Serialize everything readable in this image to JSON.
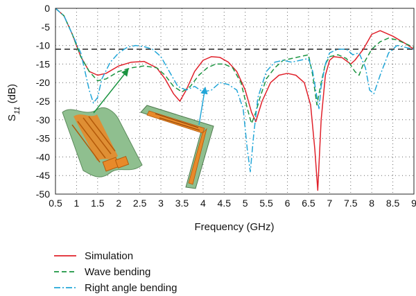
{
  "chart_data": {
    "type": "line",
    "xlabel": "Frequency (GHz)",
    "ylabel_base": "S",
    "ylabel_sub": "11",
    "ylabel_unit": " (dB)",
    "xlim": [
      0.5,
      9
    ],
    "ylim": [
      -50,
      0
    ],
    "x_ticks": [
      "0.5",
      "1",
      "1.5",
      "2",
      "2.5",
      "3",
      "3.5",
      "4",
      "4.5",
      "5",
      "5.5",
      "6",
      "6.5",
      "7",
      "7.5",
      "8",
      "8.5",
      "9"
    ],
    "y_ticks": [
      "0",
      "-5",
      "-10",
      "-15",
      "-20",
      "-25",
      "-30",
      "-35",
      "-40",
      "-45",
      "-50"
    ],
    "grid": "dotted",
    "reference_line": {
      "y": -11,
      "style": "dashed",
      "color": "#222222"
    },
    "legend_position": "bottom-left",
    "series": [
      {
        "name": "Simulation",
        "color": "#e0202a",
        "dash": "solid",
        "x": [
          0.5,
          0.7,
          0.9,
          1.1,
          1.3,
          1.5,
          1.7,
          2.0,
          2.3,
          2.6,
          2.9,
          3.1,
          3.3,
          3.45,
          3.6,
          3.8,
          4.0,
          4.2,
          4.4,
          4.6,
          4.8,
          5.0,
          5.15,
          5.25,
          5.4,
          5.6,
          5.8,
          6.0,
          6.2,
          6.4,
          6.55,
          6.65,
          6.72,
          6.8,
          6.9,
          7.0,
          7.1,
          7.3,
          7.5,
          7.6,
          7.8,
          8.0,
          8.2,
          8.5,
          8.8,
          9.0
        ],
        "y": [
          0,
          -2,
          -7,
          -13,
          -17,
          -18,
          -17.5,
          -15.5,
          -14.5,
          -14.3,
          -16,
          -19,
          -23,
          -25,
          -22,
          -17,
          -14,
          -13,
          -13.2,
          -14.5,
          -17,
          -22,
          -28,
          -30.5,
          -25,
          -20,
          -18,
          -17.5,
          -18,
          -20,
          -26,
          -38,
          -49,
          -30,
          -18,
          -14,
          -13,
          -13.3,
          -15,
          -14,
          -11,
          -7,
          -6,
          -7.5,
          -9.5,
          -11
        ]
      },
      {
        "name": "Wave bending",
        "color": "#1a9440",
        "dash": "7,4",
        "x": [
          0.5,
          0.7,
          0.9,
          1.1,
          1.3,
          1.5,
          1.7,
          2.0,
          2.3,
          2.6,
          2.9,
          3.1,
          3.3,
          3.5,
          3.7,
          3.9,
          4.1,
          4.3,
          4.5,
          4.7,
          4.9,
          5.05,
          5.15,
          5.25,
          5.35,
          5.5,
          5.7,
          5.9,
          6.1,
          6.3,
          6.5,
          6.6,
          6.7,
          6.8,
          6.9,
          7.0,
          7.2,
          7.4,
          7.6,
          7.7,
          7.8,
          8.0,
          8.2,
          8.4,
          8.6,
          8.8,
          9.0
        ],
        "y": [
          0,
          -2,
          -7,
          -13,
          -17,
          -19.5,
          -19,
          -17,
          -16,
          -15.5,
          -16,
          -18,
          -21,
          -22.5,
          -21,
          -18,
          -16,
          -15,
          -15,
          -16,
          -20,
          -27,
          -31,
          -28,
          -24,
          -19,
          -16,
          -14,
          -13.5,
          -13,
          -12.5,
          -18,
          -26,
          -20,
          -15,
          -13,
          -12.5,
          -13.5,
          -17,
          -18,
          -15,
          -11,
          -9,
          -8,
          -8.5,
          -9.5,
          -10.5
        ]
      },
      {
        "name": "Right angle bending",
        "color": "#21a6d8",
        "dash": "9,3,2,3",
        "x": [
          0.5,
          0.7,
          0.9,
          1.1,
          1.2,
          1.3,
          1.4,
          1.5,
          1.6,
          1.8,
          2.0,
          2.2,
          2.4,
          2.6,
          2.8,
          3.0,
          3.2,
          3.4,
          3.6,
          3.8,
          4.0,
          4.2,
          4.4,
          4.6,
          4.8,
          4.95,
          5.05,
          5.12,
          5.2,
          5.3,
          5.5,
          5.7,
          5.9,
          6.1,
          6.3,
          6.5,
          6.6,
          6.7,
          6.75,
          6.8,
          6.9,
          7.0,
          7.2,
          7.4,
          7.55,
          7.7,
          7.85,
          7.95,
          8.05,
          8.2,
          8.4,
          8.6,
          8.8,
          9.0
        ],
        "y": [
          0,
          -2,
          -7,
          -12,
          -17,
          -22,
          -25.5,
          -24,
          -19,
          -14.5,
          -12,
          -10.5,
          -10,
          -10.3,
          -11,
          -13,
          -17,
          -21,
          -22,
          -21,
          -22.5,
          -22,
          -20,
          -20.5,
          -22,
          -27,
          -38,
          -44,
          -34,
          -24,
          -17,
          -14.5,
          -14,
          -14.5,
          -14,
          -13.5,
          -17,
          -24,
          -27,
          -21,
          -15,
          -12,
          -11,
          -11,
          -12.5,
          -12,
          -16,
          -22,
          -23,
          -18,
          -12,
          -10,
          -10.5,
          -11
        ]
      }
    ]
  }
}
